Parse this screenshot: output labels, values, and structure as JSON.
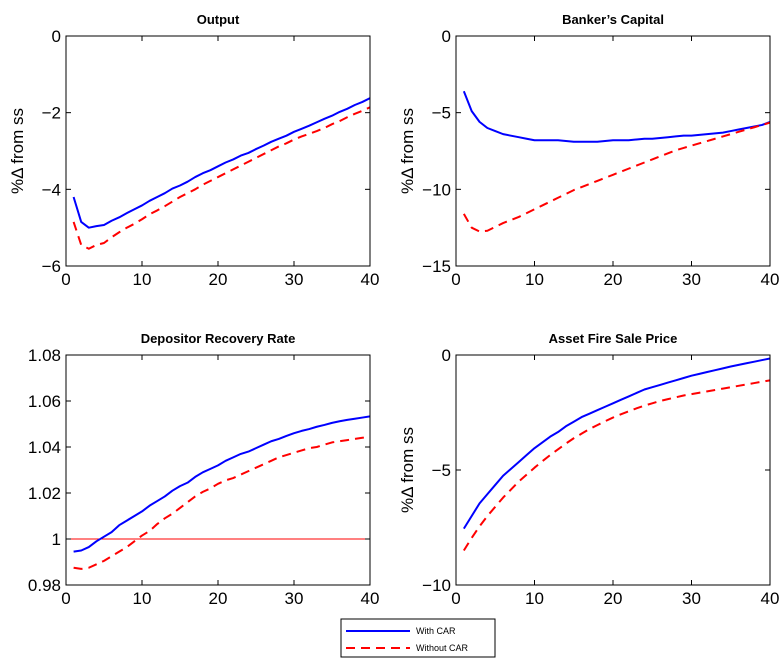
{
  "chart_data": [
    {
      "type": "line",
      "title": "Output",
      "ylabel": "%Δ from ss",
      "xlim": [
        0,
        40
      ],
      "ylim": [
        -6,
        0
      ],
      "xticks": [
        0,
        10,
        20,
        30,
        40
      ],
      "yticks": [
        0,
        -2,
        -4,
        -6
      ],
      "x": [
        1,
        2,
        3,
        4,
        5,
        6,
        7,
        8,
        9,
        10,
        11,
        12,
        13,
        14,
        15,
        16,
        17,
        18,
        19,
        20,
        21,
        22,
        23,
        24,
        25,
        26,
        27,
        28,
        29,
        30,
        31,
        32,
        33,
        34,
        35,
        36,
        37,
        38,
        39,
        40
      ],
      "reference": 0,
      "series": [
        {
          "name": "With CAR",
          "color": "#0000ff",
          "dash": "solid",
          "values": [
            -4.2,
            -4.85,
            -5.0,
            -4.96,
            -4.93,
            -4.82,
            -4.73,
            -4.62,
            -4.52,
            -4.42,
            -4.3,
            -4.2,
            -4.1,
            -3.98,
            -3.9,
            -3.8,
            -3.68,
            -3.58,
            -3.5,
            -3.4,
            -3.3,
            -3.22,
            -3.12,
            -3.05,
            -2.95,
            -2.86,
            -2.76,
            -2.68,
            -2.6,
            -2.5,
            -2.42,
            -2.34,
            -2.25,
            -2.16,
            -2.08,
            -1.98,
            -1.9,
            -1.8,
            -1.72,
            -1.62
          ]
        },
        {
          "name": "Without CAR",
          "color": "#ff0000",
          "dash": "dashed",
          "values": [
            -4.85,
            -5.45,
            -5.55,
            -5.45,
            -5.4,
            -5.25,
            -5.12,
            -5.0,
            -4.9,
            -4.78,
            -4.65,
            -4.55,
            -4.44,
            -4.32,
            -4.2,
            -4.1,
            -4.0,
            -3.88,
            -3.78,
            -3.68,
            -3.58,
            -3.48,
            -3.38,
            -3.28,
            -3.18,
            -3.08,
            -2.98,
            -2.88,
            -2.8,
            -2.7,
            -2.62,
            -2.55,
            -2.48,
            -2.4,
            -2.3,
            -2.22,
            -2.12,
            -2.03,
            -1.95,
            -1.86
          ]
        }
      ]
    },
    {
      "type": "line",
      "title": "Banker’s Capital",
      "ylabel": "%Δ from ss",
      "xlim": [
        0,
        40
      ],
      "ylim": [
        -15,
        0
      ],
      "xticks": [
        0,
        10,
        20,
        30,
        40
      ],
      "yticks": [
        0,
        -5,
        -10,
        -15
      ],
      "x": [
        1,
        2,
        3,
        4,
        5,
        6,
        7,
        8,
        9,
        10,
        11,
        12,
        13,
        14,
        15,
        16,
        17,
        18,
        19,
        20,
        21,
        22,
        23,
        24,
        25,
        26,
        27,
        28,
        29,
        30,
        31,
        32,
        33,
        34,
        35,
        36,
        37,
        38,
        39,
        40
      ],
      "reference": 0,
      "series": [
        {
          "name": "With CAR",
          "color": "#0000ff",
          "dash": "solid",
          "values": [
            -3.6,
            -4.9,
            -5.6,
            -6.0,
            -6.2,
            -6.4,
            -6.5,
            -6.6,
            -6.7,
            -6.8,
            -6.8,
            -6.8,
            -6.8,
            -6.85,
            -6.9,
            -6.9,
            -6.9,
            -6.9,
            -6.85,
            -6.8,
            -6.8,
            -6.8,
            -6.75,
            -6.7,
            -6.7,
            -6.65,
            -6.6,
            -6.55,
            -6.5,
            -6.5,
            -6.45,
            -6.4,
            -6.35,
            -6.3,
            -6.2,
            -6.1,
            -6.0,
            -5.9,
            -5.8,
            -5.6
          ]
        },
        {
          "name": "Without CAR",
          "color": "#ff0000",
          "dash": "dashed",
          "values": [
            -11.6,
            -12.5,
            -12.75,
            -12.7,
            -12.45,
            -12.2,
            -12.0,
            -11.8,
            -11.55,
            -11.3,
            -11.05,
            -10.8,
            -10.55,
            -10.3,
            -10.05,
            -9.85,
            -9.65,
            -9.45,
            -9.25,
            -9.05,
            -8.85,
            -8.65,
            -8.45,
            -8.25,
            -8.05,
            -7.85,
            -7.65,
            -7.45,
            -7.3,
            -7.15,
            -7.0,
            -6.85,
            -6.7,
            -6.55,
            -6.4,
            -6.25,
            -6.1,
            -5.95,
            -5.8,
            -5.65
          ]
        }
      ]
    },
    {
      "type": "line",
      "title": "Depositor Recovery Rate",
      "ylabel": "",
      "xlim": [
        0,
        40
      ],
      "ylim": [
        0.98,
        1.08
      ],
      "xticks": [
        0,
        10,
        20,
        30,
        40
      ],
      "yticks": [
        1.08,
        1.06,
        1.04,
        1.02,
        1,
        0.98
      ],
      "ytick_labels": [
        "1.08",
        "1.06",
        "1.04",
        "1.02",
        "1",
        "0.98"
      ],
      "x": [
        1,
        2,
        3,
        4,
        5,
        6,
        7,
        8,
        9,
        10,
        11,
        12,
        13,
        14,
        15,
        16,
        17,
        18,
        19,
        20,
        21,
        22,
        23,
        24,
        25,
        26,
        27,
        28,
        29,
        30,
        31,
        32,
        33,
        34,
        35,
        36,
        37,
        38,
        39,
        40
      ],
      "reference": 1,
      "series": [
        {
          "name": "With CAR",
          "color": "#0000ff",
          "dash": "solid",
          "values": [
            0.9945,
            0.995,
            0.9965,
            0.999,
            1.001,
            1.003,
            1.006,
            1.008,
            1.01,
            1.012,
            1.0145,
            1.0165,
            1.0185,
            1.021,
            1.023,
            1.0245,
            1.027,
            1.029,
            1.0305,
            1.032,
            1.034,
            1.0355,
            1.037,
            1.038,
            1.0395,
            1.041,
            1.0425,
            1.0435,
            1.0448,
            1.046,
            1.047,
            1.0478,
            1.0488,
            1.0496,
            1.0505,
            1.0512,
            1.0518,
            1.0523,
            1.0528,
            1.0533
          ]
        },
        {
          "name": "Without CAR",
          "color": "#ff0000",
          "dash": "dashed",
          "values": [
            0.9875,
            0.987,
            0.9875,
            0.989,
            0.9905,
            0.9925,
            0.9945,
            0.9965,
            0.999,
            1.0015,
            1.0035,
            1.0065,
            1.009,
            1.011,
            1.0135,
            1.016,
            1.0185,
            1.0205,
            1.022,
            1.024,
            1.0255,
            1.0265,
            1.028,
            1.0295,
            1.031,
            1.0325,
            1.034,
            1.0355,
            1.0365,
            1.0375,
            1.0385,
            1.0395,
            1.04,
            1.041,
            1.042,
            1.0425,
            1.043,
            1.0435,
            1.044,
            1.0445
          ]
        }
      ]
    },
    {
      "type": "line",
      "title": "Asset Fire Sale Price",
      "ylabel": "%Δ from ss",
      "xlim": [
        0,
        40
      ],
      "ylim": [
        -10,
        0
      ],
      "xticks": [
        0,
        10,
        20,
        30,
        40
      ],
      "yticks": [
        0,
        -5,
        -10
      ],
      "x": [
        1,
        2,
        3,
        4,
        5,
        6,
        7,
        8,
        9,
        10,
        11,
        12,
        13,
        14,
        15,
        16,
        17,
        18,
        19,
        20,
        21,
        22,
        23,
        24,
        25,
        26,
        27,
        28,
        29,
        30,
        31,
        32,
        33,
        34,
        35,
        36,
        37,
        38,
        39,
        40
      ],
      "reference": 0,
      "series": [
        {
          "name": "With CAR",
          "color": "#0000ff",
          "dash": "solid",
          "values": [
            -7.55,
            -7.0,
            -6.45,
            -6.05,
            -5.65,
            -5.25,
            -4.95,
            -4.65,
            -4.35,
            -4.05,
            -3.8,
            -3.55,
            -3.35,
            -3.1,
            -2.9,
            -2.7,
            -2.55,
            -2.4,
            -2.25,
            -2.1,
            -1.95,
            -1.8,
            -1.65,
            -1.5,
            -1.4,
            -1.3,
            -1.2,
            -1.1,
            -1.0,
            -0.9,
            -0.82,
            -0.74,
            -0.66,
            -0.58,
            -0.5,
            -0.43,
            -0.36,
            -0.29,
            -0.22,
            -0.15
          ]
        },
        {
          "name": "Without CAR",
          "color": "#ff0000",
          "dash": "dashed",
          "values": [
            -8.5,
            -7.95,
            -7.45,
            -7.0,
            -6.6,
            -6.2,
            -5.85,
            -5.5,
            -5.2,
            -4.9,
            -4.62,
            -4.35,
            -4.1,
            -3.85,
            -3.62,
            -3.42,
            -3.22,
            -3.05,
            -2.88,
            -2.72,
            -2.58,
            -2.45,
            -2.32,
            -2.2,
            -2.1,
            -2.0,
            -1.92,
            -1.84,
            -1.76,
            -1.7,
            -1.64,
            -1.58,
            -1.52,
            -1.46,
            -1.4,
            -1.34,
            -1.28,
            -1.22,
            -1.16,
            -1.1
          ]
        }
      ]
    }
  ],
  "legend": {
    "placement": "bottom-center",
    "items": [
      {
        "label": "With CAR",
        "color": "#0000ff",
        "dash": "solid"
      },
      {
        "label": "Without CAR",
        "color": "#ff0000",
        "dash": "dashed"
      }
    ]
  }
}
